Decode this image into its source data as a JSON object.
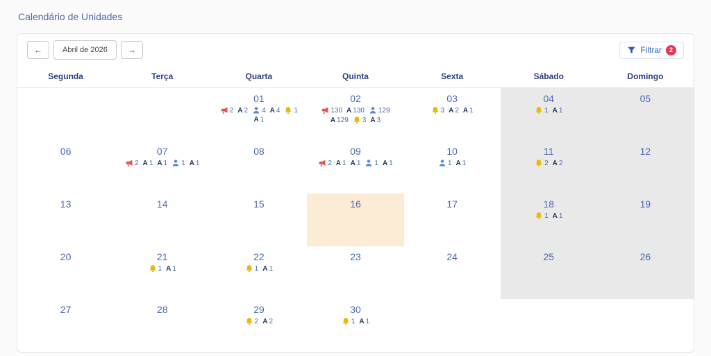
{
  "page_title": "Calendário de Unidades",
  "toolbar": {
    "prev": "←",
    "month": "Abril de 2026",
    "next": "→",
    "filter": "Filtrar",
    "filter_badge": "2"
  },
  "icons": {
    "letter_a_glyph": "A"
  },
  "calendar": {
    "day_headers": [
      "Segunda",
      "Terça",
      "Quarta",
      "Quinta",
      "Sexta",
      "Sábado",
      "Domingo"
    ],
    "weeks": [
      [
        {
          "day": ""
        },
        {
          "day": ""
        },
        {
          "day": "01",
          "events": [
            [
              "megaphone",
              "2"
            ],
            [
              "letter-a",
              "2"
            ],
            [
              "person",
              "4"
            ],
            [
              "letter-a",
              "4"
            ],
            [
              "bell",
              "1"
            ],
            [
              "letter-a",
              "1"
            ]
          ]
        },
        {
          "day": "02",
          "events": [
            [
              "megaphone",
              "130"
            ],
            [
              "letter-a",
              "130"
            ],
            [
              "person",
              "129"
            ],
            [
              "letter-a",
              "129"
            ],
            [
              "bell",
              "3"
            ],
            [
              "letter-a",
              "3"
            ]
          ]
        },
        {
          "day": "03",
          "events": [
            [
              "bell",
              "3"
            ],
            [
              "letter-a",
              "2"
            ],
            [
              "letter-a",
              "1"
            ]
          ]
        },
        {
          "day": "04",
          "events": [
            [
              "bell",
              "1"
            ],
            [
              "letter-a",
              "1"
            ]
          ]
        },
        {
          "day": "05"
        }
      ],
      [
        {
          "day": "06"
        },
        {
          "day": "07",
          "events": [
            [
              "megaphone",
              "2"
            ],
            [
              "letter-a",
              "1"
            ],
            [
              "letter-a",
              "1"
            ],
            [
              "person",
              "1"
            ],
            [
              "letter-a",
              "1"
            ]
          ]
        },
        {
          "day": "08"
        },
        {
          "day": "09",
          "events": [
            [
              "megaphone",
              "2"
            ],
            [
              "letter-a",
              "1"
            ],
            [
              "letter-a",
              "1"
            ],
            [
              "person",
              "1"
            ],
            [
              "letter-a",
              "1"
            ]
          ]
        },
        {
          "day": "10",
          "events": [
            [
              "person",
              "1"
            ],
            [
              "letter-a",
              "1"
            ]
          ]
        },
        {
          "day": "11",
          "events": [
            [
              "bell",
              "2"
            ],
            [
              "letter-a",
              "2"
            ]
          ]
        },
        {
          "day": "12"
        }
      ],
      [
        {
          "day": "13"
        },
        {
          "day": "14"
        },
        {
          "day": "15"
        },
        {
          "day": "16",
          "today": true
        },
        {
          "day": "17"
        },
        {
          "day": "18",
          "events": [
            [
              "bell",
              "1"
            ],
            [
              "letter-a",
              "1"
            ]
          ]
        },
        {
          "day": "19"
        }
      ],
      [
        {
          "day": "20"
        },
        {
          "day": "21",
          "events": [
            [
              "bell",
              "1"
            ],
            [
              "letter-a",
              "1"
            ]
          ]
        },
        {
          "day": "22",
          "events": [
            [
              "bell",
              "1"
            ],
            [
              "letter-a",
              "1"
            ]
          ]
        },
        {
          "day": "23"
        },
        {
          "day": "24"
        },
        {
          "day": "25"
        },
        {
          "day": "26"
        }
      ],
      [
        {
          "day": "27"
        },
        {
          "day": "28"
        },
        {
          "day": "29",
          "events": [
            [
              "bell",
              "2"
            ],
            [
              "letter-a",
              "2"
            ]
          ]
        },
        {
          "day": "30",
          "events": [
            [
              "bell",
              "1"
            ],
            [
              "letter-a",
              "1"
            ]
          ]
        },
        {
          "day": ""
        },
        {
          "day": ""
        },
        {
          "day": ""
        }
      ]
    ]
  },
  "colors": {
    "accent_blue": "#4a69b1",
    "header_navy": "#2e3f7f",
    "weekend_bg": "#e9e9e9",
    "today_bg": "#fcebd5",
    "badge_red": "#e63757",
    "filter_blue": "#2f5bb7",
    "megaphone_red": "#e2574c",
    "person_blue": "#5b8bd0",
    "bell_gold": "#e8b90c",
    "letter_a_dark": "#253858"
  }
}
